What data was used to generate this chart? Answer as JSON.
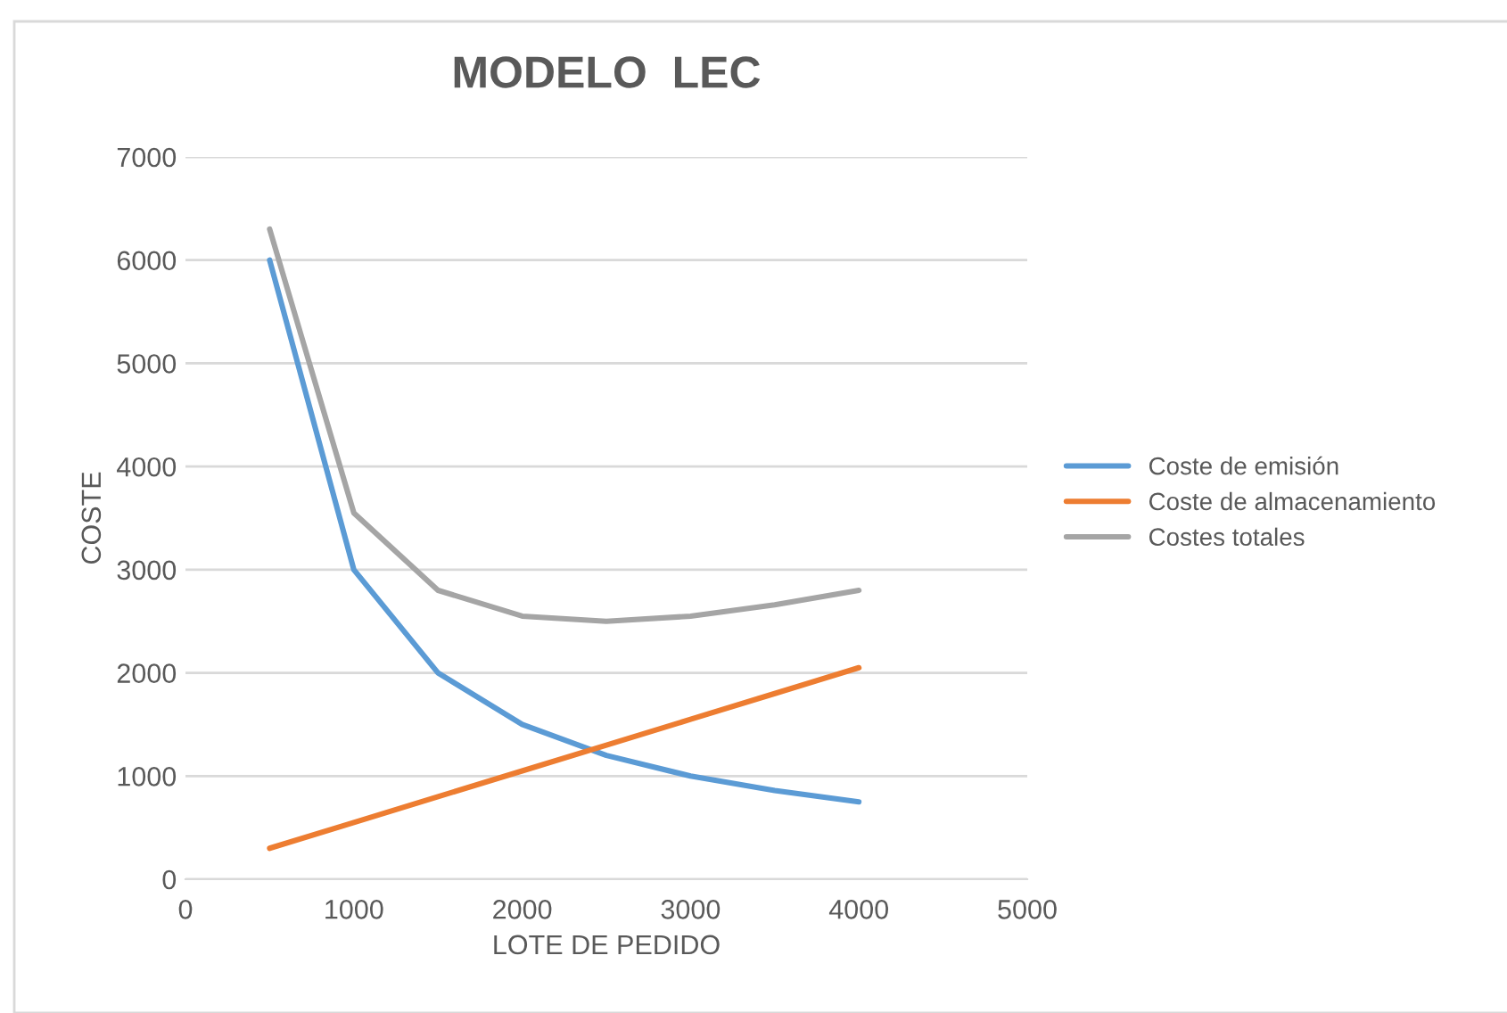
{
  "chart_data": {
    "type": "line",
    "title": "MODELO  LEC",
    "xlabel": "LOTE DE PEDIDO",
    "ylabel": "COSTE",
    "x": [
      500,
      1000,
      1500,
      2000,
      2500,
      3000,
      3500,
      4000
    ],
    "series": [
      {
        "name": "Coste de emisión",
        "color": "#5b9bd5",
        "values": [
          6000,
          3000,
          2000,
          1500,
          1200,
          1000,
          860,
          750
        ]
      },
      {
        "name": "Coste de almacenamiento",
        "color": "#ed7d31",
        "values": [
          300,
          550,
          800,
          1050,
          1300,
          1550,
          1800,
          2050
        ]
      },
      {
        "name": "Costes totales",
        "color": "#a5a5a5",
        "values": [
          6300,
          3550,
          2800,
          2550,
          2500,
          2550,
          2660,
          2800
        ]
      }
    ],
    "xlim": [
      0,
      5000
    ],
    "xticks": [
      0,
      1000,
      2000,
      3000,
      4000,
      5000
    ],
    "ylim": [
      0,
      7000
    ],
    "yticks": [
      0,
      1000,
      2000,
      3000,
      4000,
      5000,
      6000,
      7000
    ],
    "grid": "y",
    "legend": "right",
    "marker": "none",
    "line_style": "solid"
  }
}
